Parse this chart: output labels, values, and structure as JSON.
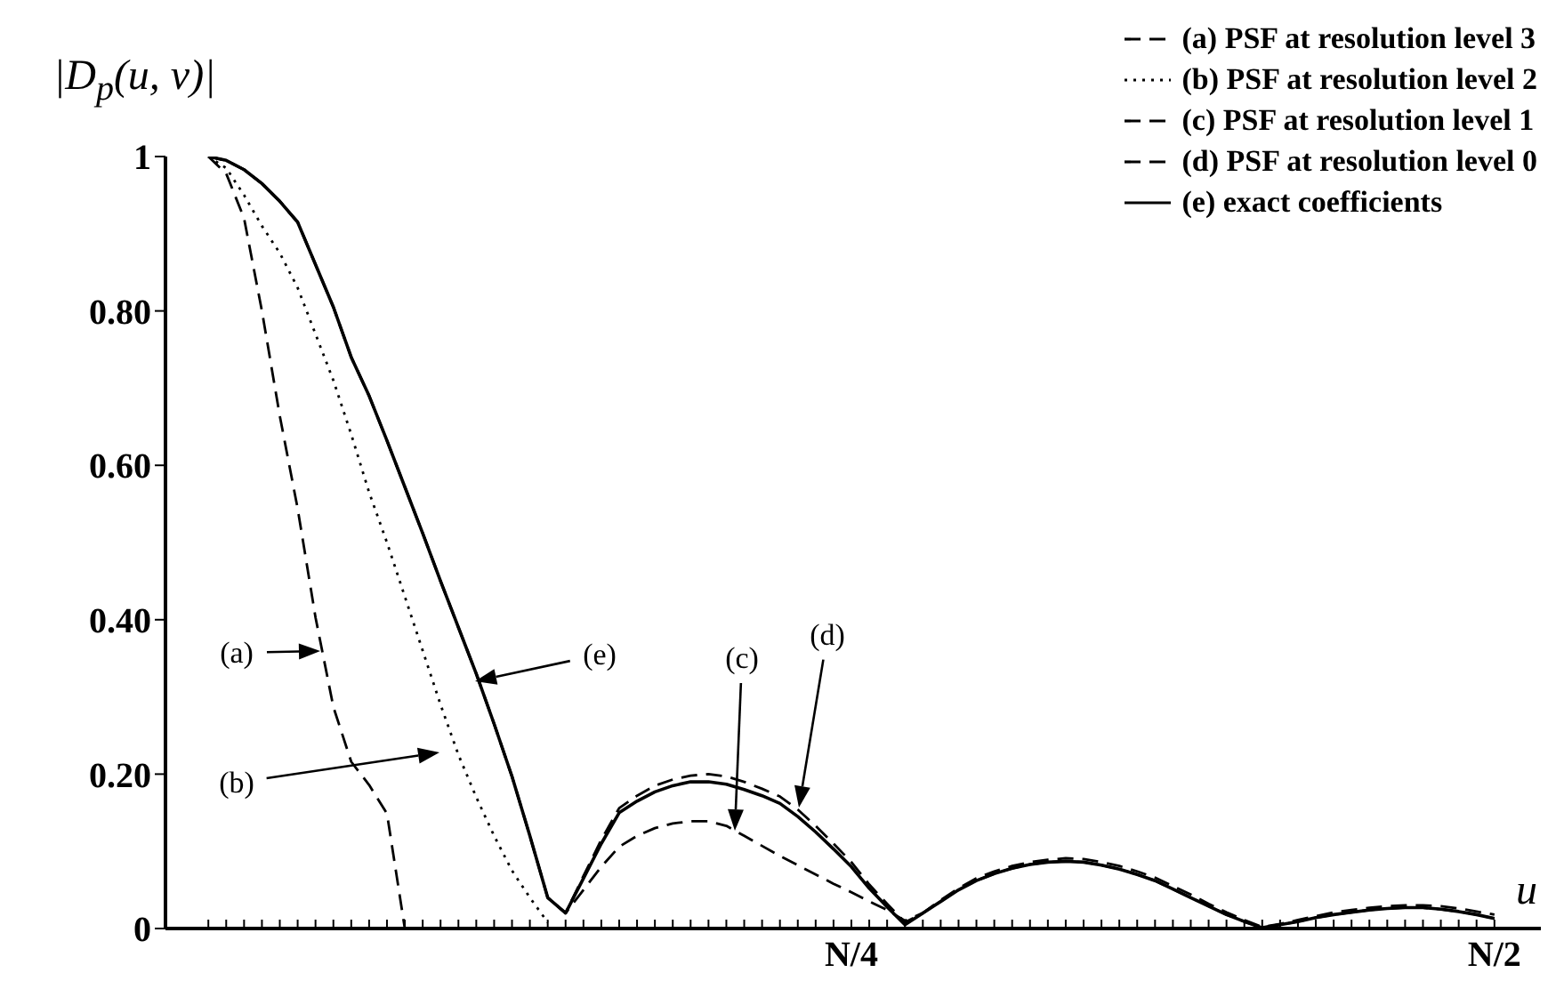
{
  "chart_data": {
    "type": "line",
    "xlabel": "u",
    "ylabel": "|D$_{p}$(u, v)|",
    "legend": "top right",
    "categories": [
      null,
      null,
      null,
      null,
      null,
      null,
      null,
      null,
      null,
      null,
      null,
      null,
      null,
      null,
      null,
      null,
      null,
      null,
      null,
      null,
      null,
      null,
      null,
      null,
      null,
      null,
      null,
      null,
      null,
      null,
      null,
      null,
      null,
      null,
      null,
      null,
      "N/4",
      null,
      null,
      null,
      null,
      null,
      null,
      null,
      null,
      null,
      null,
      null,
      null,
      null,
      null,
      null,
      null,
      null,
      null,
      null,
      null,
      null,
      null,
      null,
      null,
      null,
      null,
      null,
      null,
      null,
      null,
      null,
      null,
      null,
      null,
      null,
      "N/2"
    ],
    "ylim": [
      0,
      1
    ],
    "yticks": [
      0,
      {
        "value": 0.2,
        "label": "0.20"
      },
      {
        "value": 0.4,
        "label": "0.40"
      },
      {
        "value": 0.6,
        "label": "0.60"
      },
      {
        "value": 0.8,
        "label": "0.80"
      },
      1
    ],
    "series": [
      {
        "name": "(a) PSF at resolution level 3",
        "color": "#000000",
        "line_style": "dashed",
        "values": [
          1,
          0.978,
          0.92,
          0.8,
          0.664,
          0.544,
          0.403,
          0.287,
          0.216,
          0.186,
          0.149,
          0,
          null,
          null,
          null,
          null,
          null,
          null,
          null,
          null,
          null,
          null,
          null,
          null,
          null,
          null,
          null,
          null,
          null,
          null,
          null,
          null,
          null,
          null,
          null,
          null,
          null,
          null,
          null,
          null,
          null,
          null,
          null,
          null,
          null,
          null,
          null,
          null,
          null,
          null,
          null,
          null,
          null,
          null,
          null,
          null,
          null,
          null,
          null,
          null,
          null,
          null,
          null,
          null,
          null,
          null,
          null,
          null,
          null,
          null,
          null,
          null,
          null
        ]
      },
      {
        "name": "(b) PSF at resolution level 2",
        "color": "#000000",
        "line_style": "dotted",
        "values": [
          1,
          0.985,
          0.95,
          0.91,
          0.875,
          0.83,
          0.77,
          0.71,
          0.64,
          0.565,
          0.5,
          0.43,
          0.36,
          0.29,
          0.225,
          0.17,
          0.12,
          0.075,
          0.04,
          0.008,
          null,
          null,
          null,
          null,
          null,
          null,
          null,
          null,
          null,
          null,
          null,
          null,
          null,
          null,
          null,
          null,
          null,
          null,
          null,
          null,
          null,
          null,
          null,
          null,
          null,
          null,
          null,
          null,
          null,
          null,
          null,
          null,
          null,
          null,
          null,
          null,
          null,
          null,
          null,
          null,
          null,
          null,
          null,
          null,
          null,
          null,
          null,
          null,
          null,
          null,
          null,
          null,
          null
        ]
      },
      {
        "name": "(c) PSF at resolution level 1",
        "color": "#000000",
        "line_style": "dashed",
        "values": [
          1,
          0.995,
          0.983,
          0.965,
          0.942,
          0.915,
          0.86,
          0.805,
          0.74,
          0.69,
          0.632,
          0.572,
          0.512,
          0.45,
          0.39,
          0.33,
          0.265,
          0.197,
          0.12,
          0.04,
          0.02,
          0.05,
          0.08,
          0.106,
          0.12,
          0.13,
          0.136,
          0.139,
          0.139,
          0.133,
          0.12,
          0.107,
          0.094,
          0.082,
          0.07,
          0.058,
          0.047,
          0.035,
          0.024,
          0.01,
          0.02,
          0.035,
          0.05,
          0.062,
          0.071,
          0.078,
          0.083,
          0.086,
          0.087,
          0.086,
          0.082,
          0.077,
          0.07,
          0.062,
          0.051,
          0.04,
          0.029,
          0.018,
          0.009,
          0.001,
          0.005,
          0.009,
          0.014,
          0.018,
          0.021,
          0.024,
          0.026,
          0.027,
          0.027,
          0.025,
          0.022,
          0.018,
          0.013
        ]
      },
      {
        "name": "(d) PSF at resolution level 0",
        "color": "#000000",
        "line_style": "dashed",
        "values": [
          1,
          0.995,
          0.983,
          0.965,
          0.942,
          0.915,
          0.86,
          0.805,
          0.74,
          0.69,
          0.632,
          0.572,
          0.512,
          0.45,
          0.39,
          0.33,
          0.265,
          0.197,
          0.12,
          0.04,
          0.02,
          0.068,
          0.115,
          0.156,
          0.172,
          0.185,
          0.193,
          0.198,
          0.2,
          0.197,
          0.19,
          0.181,
          0.171,
          0.154,
          0.133,
          0.11,
          0.086,
          0.057,
          0.032,
          0.008,
          0.02,
          0.037,
          0.052,
          0.065,
          0.074,
          0.081,
          0.086,
          0.089,
          0.091,
          0.09,
          0.086,
          0.081,
          0.074,
          0.066,
          0.055,
          0.044,
          0.032,
          0.021,
          0.011,
          0.002,
          0.006,
          0.011,
          0.016,
          0.021,
          0.024,
          0.027,
          0.029,
          0.03,
          0.03,
          0.029,
          0.026,
          0.022,
          0.018
        ]
      },
      {
        "name": "(e) exact coefficients",
        "color": "#000000",
        "line_style": "solid",
        "values": [
          1,
          0.995,
          0.983,
          0.965,
          0.942,
          0.915,
          0.86,
          0.805,
          0.74,
          0.69,
          0.632,
          0.572,
          0.512,
          0.45,
          0.39,
          0.33,
          0.265,
          0.197,
          0.12,
          0.04,
          0.02,
          0.065,
          0.11,
          0.15,
          0.165,
          0.177,
          0.185,
          0.19,
          0.19,
          0.187,
          0.18,
          0.172,
          0.162,
          0.145,
          0.125,
          0.103,
          0.08,
          0.052,
          0.028,
          0.005,
          0.02,
          0.035,
          0.05,
          0.062,
          0.071,
          0.078,
          0.083,
          0.086,
          0.087,
          0.086,
          0.082,
          0.077,
          0.07,
          0.062,
          0.051,
          0.04,
          0.029,
          0.018,
          0.009,
          0.001,
          0.005,
          0.009,
          0.014,
          0.018,
          0.021,
          0.024,
          0.026,
          0.027,
          0.027,
          0.025,
          0.022,
          0.018,
          0.013
        ]
      }
    ],
    "annotations": [
      "(a)",
      "(b)",
      "(c)",
      "(d)",
      "(e)"
    ]
  }
}
